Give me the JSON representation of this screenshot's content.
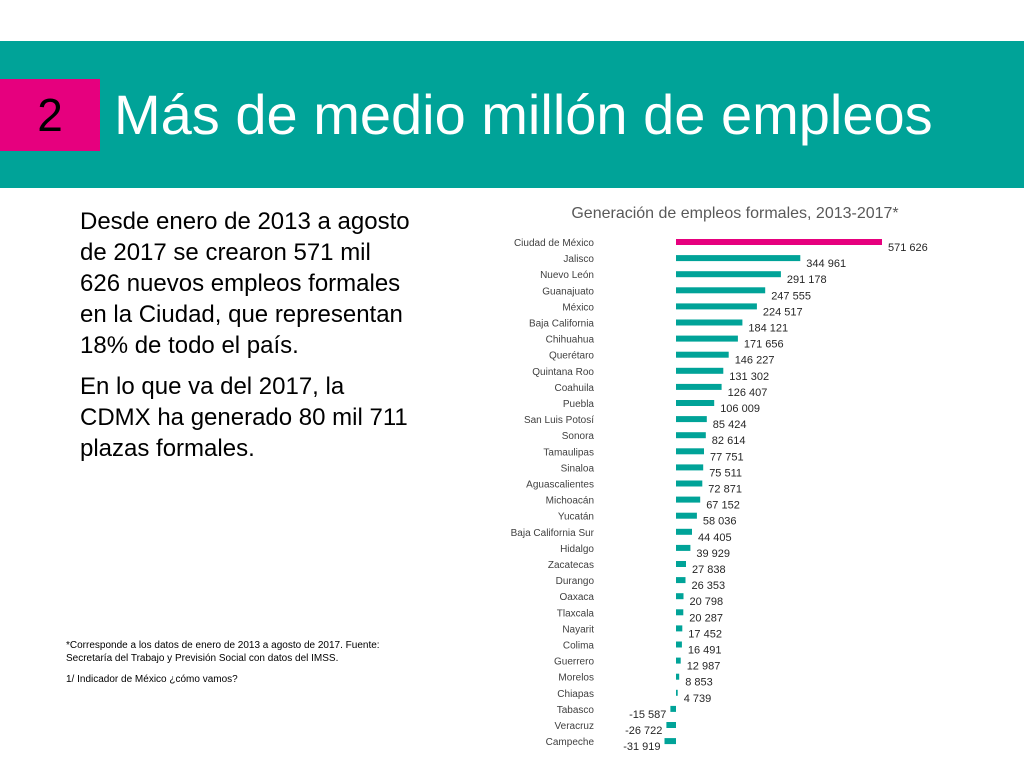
{
  "slide": {
    "number": "2",
    "title": "Más de medio millón de empleos"
  },
  "body": {
    "paragraph_1": "Desde enero de 2013 a agosto de 2017 se crearon 571 mil 626 nuevos empleos formales en la Ciudad, que representan 18% de todo el país.",
    "paragraph_2": "En lo que va del 2017, la CDMX ha generado 80 mil 711 plazas formales."
  },
  "notes": {
    "note_1": "*Corresponde a los datos de enero de 2013 a agosto de 2017. Fuente: Secretaría del Trabajo y Previsión Social con datos del IMSS.",
    "note_2": "1/ Indicador de México ¿cómo vamos?"
  },
  "colors": {
    "banner": "#00a398",
    "badge": "#e6007e",
    "highlight_bar": "#e6007e",
    "bar": "#00a398"
  },
  "chart_data": {
    "type": "bar",
    "orientation": "horizontal",
    "title": "Generación de empleos formales, 2013-2017*",
    "categories": [
      "Ciudad de México",
      "Jalisco",
      "Nuevo León",
      "Guanajuato",
      "México",
      "Baja California",
      "Chihuahua",
      "Querétaro",
      "Quintana Roo",
      "Coahuila",
      "Puebla",
      "San Luis Potosí",
      "Sonora",
      "Tamaulipas",
      "Sinaloa",
      "Aguascalientes",
      "Michoacán",
      "Yucatán",
      "Baja California Sur",
      "Hidalgo",
      "Zacatecas",
      "Durango",
      "Oaxaca",
      "Tlaxcala",
      "Nayarit",
      "Colima",
      "Guerrero",
      "Morelos",
      "Chiapas",
      "Tabasco",
      "Veracruz",
      "Campeche"
    ],
    "values": [
      571626,
      344961,
      291178,
      247555,
      224517,
      184121,
      171656,
      146227,
      131302,
      126407,
      106009,
      85424,
      82614,
      77751,
      75511,
      72871,
      67152,
      58036,
      44405,
      39929,
      27838,
      26353,
      20798,
      20287,
      17452,
      16491,
      12987,
      8853,
      4739,
      -15587,
      -26722,
      -31919
    ],
    "value_labels": [
      "571 626",
      "344 961",
      "291 178",
      "247 555",
      "224 517",
      "184 121",
      "171 656",
      "146 227",
      "131 302",
      "126 407",
      "106 009",
      "85 424",
      "82 614",
      "77 751",
      "75 511",
      "72 871",
      "67 152",
      "58 036",
      "44 405",
      "39 929",
      "27 838",
      "26 353",
      "20 798",
      "20 287",
      "17 452",
      "16 491",
      "12 987",
      "8 853",
      "4 739",
      "-15 587",
      "-26 722",
      "-31 919"
    ],
    "highlight_index": 0,
    "legend": "none",
    "grid": false
  }
}
